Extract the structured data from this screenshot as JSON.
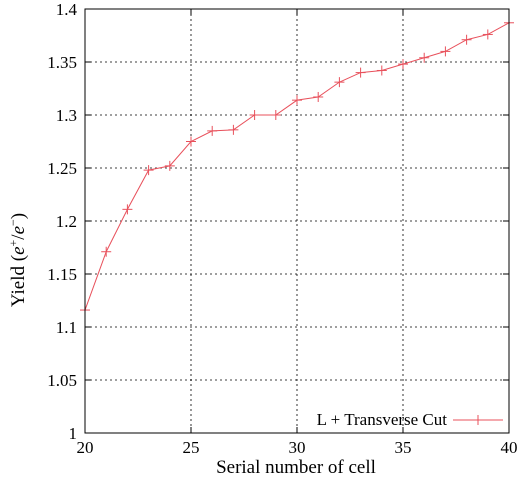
{
  "chart_data": {
    "type": "line",
    "title": "",
    "xlabel": "Serial number of cell",
    "ylabel_main": "Yield (",
    "ylabel_num": "e",
    "ylabel_num_sup": "+",
    "ylabel_slash": "/",
    "ylabel_den": "e",
    "ylabel_den_sup": "−",
    "ylabel_close": ")",
    "xlim": [
      20,
      40
    ],
    "ylim": [
      1,
      1.4
    ],
    "x_ticks": [
      20,
      25,
      30,
      35,
      40
    ],
    "x_tick_labels": [
      "20",
      "25",
      "30",
      "35",
      "40"
    ],
    "y_ticks": [
      1,
      1.05,
      1.1,
      1.15,
      1.2,
      1.25,
      1.3,
      1.35,
      1.4
    ],
    "y_tick_labels": [
      "1",
      "1.05",
      "1.1",
      "1.15",
      "1.2",
      "1.25",
      "1.3",
      "1.35",
      "1.4"
    ],
    "grid": true,
    "legend_position": "bottom-right",
    "series": [
      {
        "name": "L + Transverse Cut",
        "color": "#e8505b",
        "marker": "plus",
        "x": [
          20,
          21,
          22,
          23,
          24,
          25,
          26,
          27,
          28,
          29,
          30,
          31,
          32,
          33,
          34,
          35,
          36,
          37,
          38,
          39,
          40
        ],
        "y": [
          1.116,
          1.171,
          1.211,
          1.248,
          1.252,
          1.275,
          1.285,
          1.286,
          1.3,
          1.3,
          1.314,
          1.317,
          1.331,
          1.34,
          1.342,
          1.348,
          1.354,
          1.36,
          1.371,
          1.376,
          1.387
        ]
      }
    ]
  }
}
